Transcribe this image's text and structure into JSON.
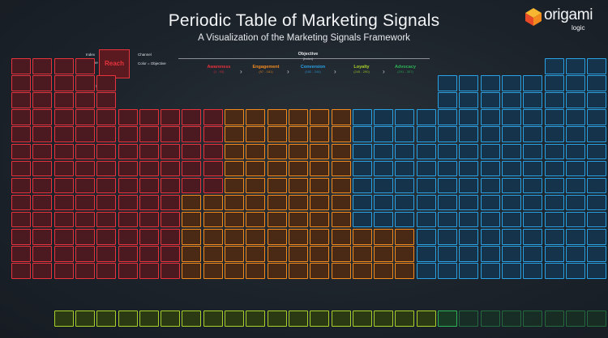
{
  "title": "Periodic Table of Marketing Signals",
  "subtitle": "A Visualization of the Marketing Signals Framework",
  "logo": {
    "name": "origami",
    "sub": "logic"
  },
  "legend": {
    "index": "Index",
    "channel": "Channel",
    "signal_name": "Signal Name",
    "color": "Color = Objective",
    "signal_type": "Signal Type",
    "example_num": "100",
    "example_abbr": "Ex",
    "example_label": "Reach",
    "example_type": "Volume"
  },
  "objective": {
    "title": "Objective",
    "subtitle": "(Index)"
  },
  "stages": [
    {
      "name": "Awareness",
      "range": "(1 - 93)",
      "color": "#e8323c"
    },
    {
      "name": "Engagement",
      "range": "(97 - 161)",
      "color": "#f28a1e"
    },
    {
      "name": "Conversion",
      "range": "(162 - 244)",
      "color": "#2aa3e6"
    },
    {
      "name": "Loyalty",
      "range": "(245 - 290)",
      "color": "#a8d22a"
    },
    {
      "name": "Advocacy",
      "range": "(291 - 307)",
      "color": "#2fb457"
    }
  ],
  "colors": {
    "awareness": "#e8323c",
    "engagement": "#f28a1e",
    "conversion": "#2aa3e6",
    "loyalty": "#a8d22a",
    "advocacy": "#2fb457"
  }
}
